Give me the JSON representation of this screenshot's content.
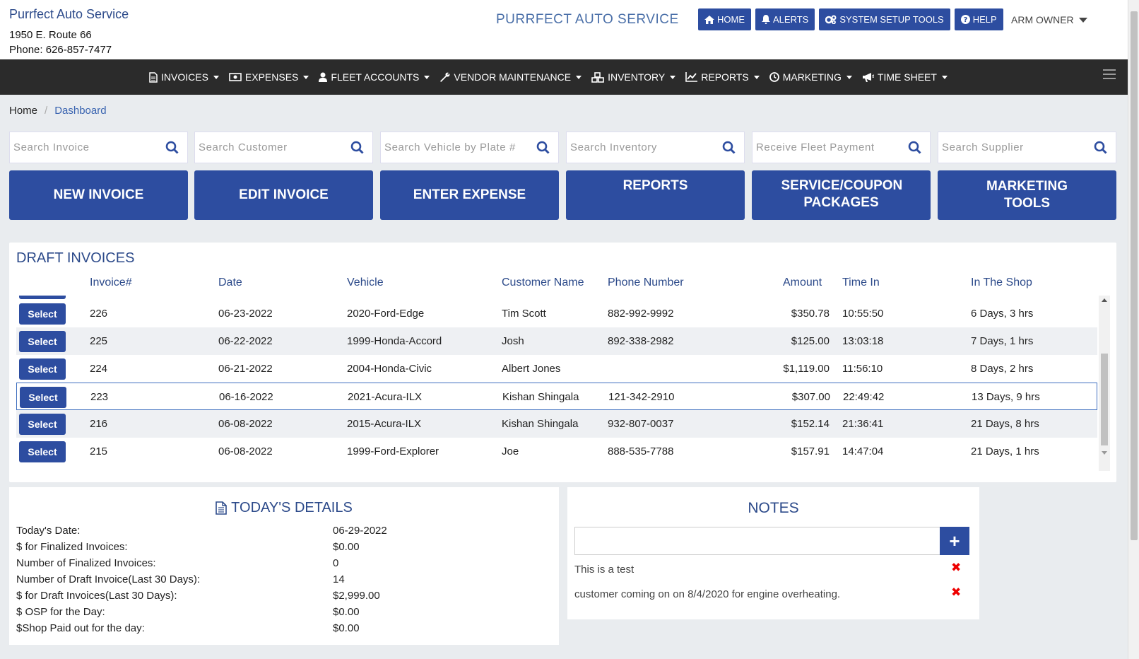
{
  "header": {
    "company_name": "Purrfect Auto Service",
    "address": "1950 E. Route 66",
    "phone": "Phone: 626-857-7477",
    "center_title": "PURRFECT AUTO SERVICE",
    "buttons": {
      "home": "HOME",
      "alerts": "ALERTS",
      "setup": "SYSTEM SETUP TOOLS",
      "help": "HELP"
    },
    "owner": "ARM OWNER"
  },
  "nav": {
    "invoices": "INVOICES",
    "expenses": "EXPENSES",
    "fleet": "FLEET ACCOUNTS",
    "vendor": "VENDOR MAINTENANCE",
    "inventory": "INVENTORY",
    "reports": "REPORTS",
    "marketing": "MARKETING",
    "timesheet": "TIME SHEET"
  },
  "breadcrumb": {
    "home": "Home",
    "current": "Dashboard"
  },
  "search": {
    "invoice": "Search Invoice",
    "customer": "Search Customer",
    "vehicle": "Search Vehicle by Plate #",
    "inventory": "Search Inventory",
    "fleet_payment": "Receive Fleet Payment",
    "supplier": "Search Supplier"
  },
  "actions": {
    "new_invoice": "NEW INVOICE",
    "edit_invoice": "EDIT INVOICE",
    "enter_expense": "ENTER EXPENSE",
    "reports": "REPORTS",
    "service_packages": "SERVICE/COUPON PACKAGES",
    "marketing_tools": "MARKETING TOOLS"
  },
  "draft_invoices": {
    "title": "DRAFT INVOICES",
    "select_label": "Select",
    "columns": {
      "invoice": "Invoice#",
      "date": "Date",
      "vehicle": "Vehicle",
      "customer": "Customer Name",
      "phone": "Phone Number",
      "amount": "Amount",
      "time_in": "Time In",
      "in_shop": "In The Shop"
    },
    "rows": [
      {
        "invoice": "226",
        "date": "06-23-2022",
        "vehicle": "2020-Ford-Edge",
        "customer": "Tim Scott",
        "phone": "882-992-9992",
        "amount": "$350.78",
        "time_in": "10:55:50",
        "in_shop": "6 Days, 3 hrs"
      },
      {
        "invoice": "225",
        "date": "06-22-2022",
        "vehicle": "1999-Honda-Accord",
        "customer": "Josh",
        "phone": "892-338-2982",
        "amount": "$125.00",
        "time_in": "13:03:18",
        "in_shop": "7 Days, 1 hrs"
      },
      {
        "invoice": "224",
        "date": "06-21-2022",
        "vehicle": "2004-Honda-Civic",
        "customer": "Albert Jones",
        "phone": "",
        "amount": "$1,119.00",
        "time_in": "11:56:10",
        "in_shop": "8 Days, 2 hrs"
      },
      {
        "invoice": "223",
        "date": "06-16-2022",
        "vehicle": "2021-Acura-ILX",
        "customer": "Kishan Shingala",
        "phone": "121-342-2910",
        "amount": "$307.00",
        "time_in": "22:49:42",
        "in_shop": "13 Days, 9 hrs"
      },
      {
        "invoice": "216",
        "date": "06-08-2022",
        "vehicle": "2015-Acura-ILX",
        "customer": "Kishan Shingala",
        "phone": "932-807-0037",
        "amount": "$152.14",
        "time_in": "21:36:41",
        "in_shop": "21 Days, 8 hrs"
      },
      {
        "invoice": "215",
        "date": "06-08-2022",
        "vehicle": "1999-Ford-Explorer",
        "customer": "Joe",
        "phone": "888-535-7788",
        "amount": "$157.91",
        "time_in": "14:47:04",
        "in_shop": "21 Days, 1 hrs"
      }
    ]
  },
  "today": {
    "title": "TODAY'S DETAILS",
    "items": [
      {
        "label": "Today's Date:",
        "value": "06-29-2022"
      },
      {
        "label": "$ for Finalized Invoices:",
        "value": "$0.00"
      },
      {
        "label": "Number of Finalized Invoices:",
        "value": "0"
      },
      {
        "label": "Number of Draft Invoice(Last 30 Days):",
        "value": "14"
      },
      {
        "label": "$ for Draft Invoices(Last 30 Days):",
        "value": "$2,999.00"
      },
      {
        "label": "$ OSP for the Day:",
        "value": "$0.00"
      },
      {
        "label": "$Shop Paid out for the day:",
        "value": "$0.00"
      }
    ]
  },
  "notes": {
    "title": "NOTES",
    "input_value": "",
    "add_label": "+",
    "items": [
      {
        "text": "This is a test"
      },
      {
        "text": "customer coming on on 8/4/2020 for engine overheating."
      }
    ],
    "delete_glyph": "✖"
  },
  "colors": {
    "primary": "#2d4da0",
    "title": "#2c4a8a",
    "navbar": "#2b2b2b"
  }
}
